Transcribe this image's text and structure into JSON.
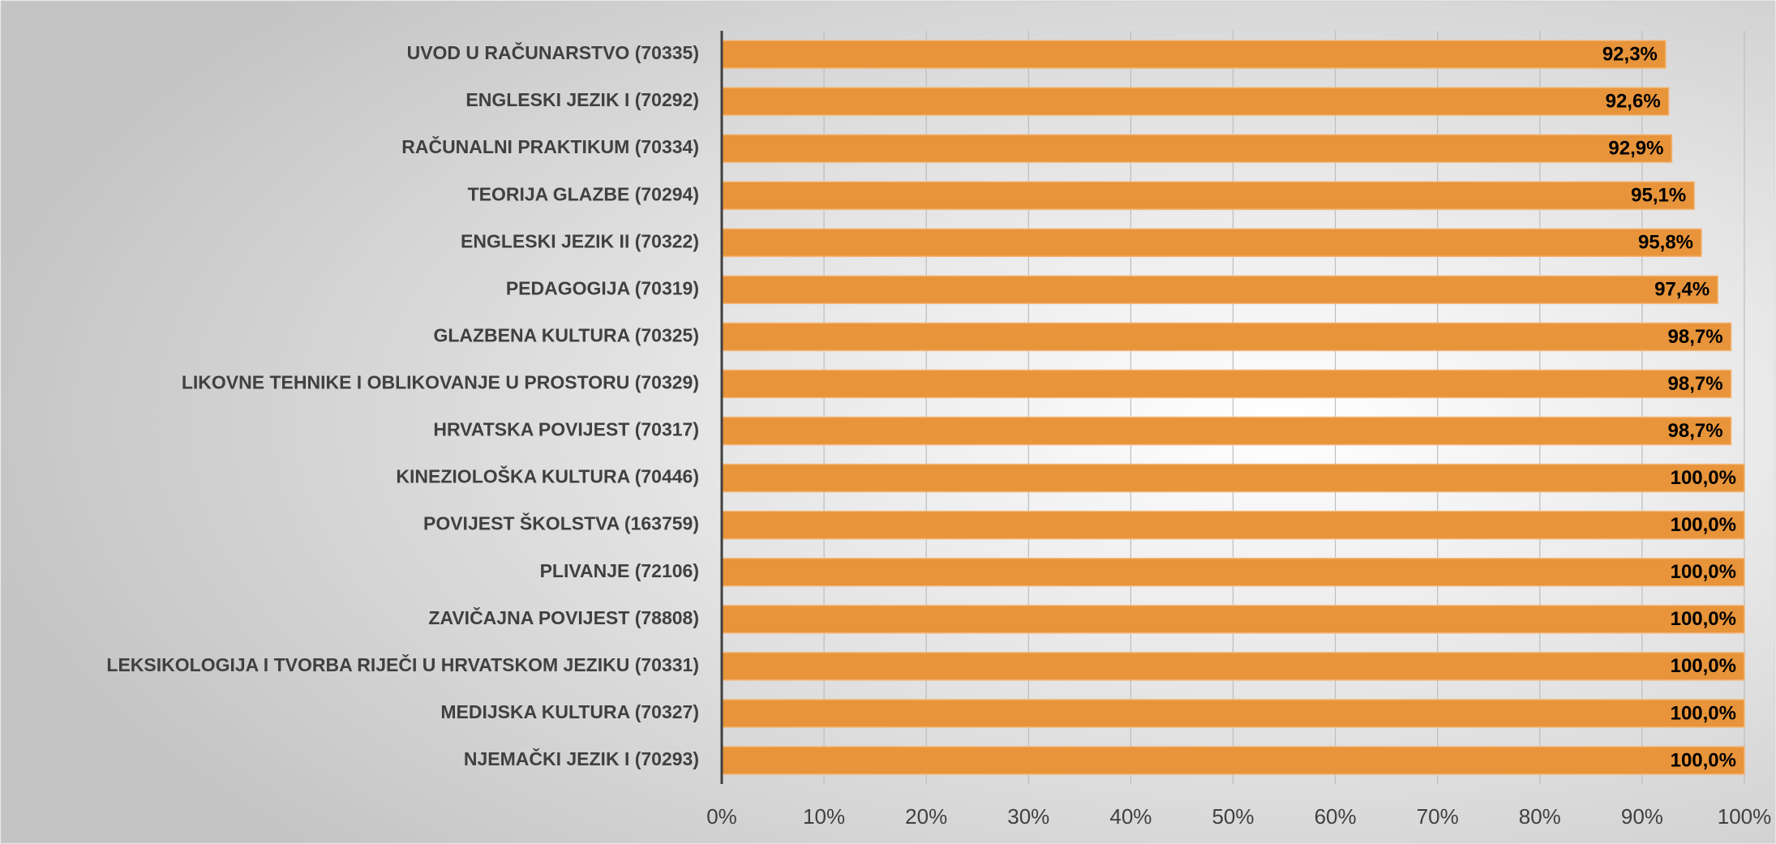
{
  "chart_data": {
    "type": "bar",
    "orientation": "horizontal",
    "categories": [
      "UVOD U RAČUNARSTVO (70335)",
      "ENGLESKI JEZIK I (70292)",
      "RAČUNALNI PRAKTIKUM (70334)",
      "TEORIJA GLAZBE (70294)",
      "ENGLESKI JEZIK II (70322)",
      "PEDAGOGIJA (70319)",
      "GLAZBENA KULTURA (70325)",
      "LIKOVNE TEHNIKE I OBLIKOVANJE U PROSTORU (70329)",
      "HRVATSKA POVIJEST (70317)",
      "KINEZIOLOŠKA KULTURA (70446)",
      "POVIJEST ŠKOLSTVA (163759)",
      "PLIVANJE (72106)",
      "ZAVIČAJNA POVIJEST (78808)",
      "LEKSIKOLOGIJA I TVORBA RIJEČI U HRVATSKOM JEZIKU (70331)",
      "MEDIJSKA KULTURA (70327)",
      "NJEMAČKI JEZIK I (70293)"
    ],
    "values": [
      92.3,
      92.6,
      92.9,
      95.1,
      95.8,
      97.4,
      98.7,
      98.7,
      98.7,
      100,
      100,
      100,
      100,
      100,
      100,
      100
    ],
    "value_labels": [
      "92,3%",
      "92,6%",
      "92,9%",
      "95,1%",
      "95,8%",
      "97,4%",
      "98,7%",
      "98,7%",
      "98,7%",
      "100,0%",
      "100,0%",
      "100,0%",
      "100,0%",
      "100,0%",
      "100,0%",
      "100,0%"
    ],
    "color": "#e8943a",
    "xlim": [
      0,
      100
    ],
    "xticks": [
      {
        "value": 0,
        "label": "0%"
      },
      {
        "value": 10,
        "label": "10%"
      },
      {
        "value": 20,
        "label": "20%"
      },
      {
        "value": 30,
        "label": "30%"
      },
      {
        "value": 40,
        "label": "40%"
      },
      {
        "value": 50,
        "label": "50%"
      },
      {
        "value": 60,
        "label": "60%"
      },
      {
        "value": 70,
        "label": "70%"
      },
      {
        "value": 80,
        "label": "80%"
      },
      {
        "value": 90,
        "label": "90%"
      },
      {
        "value": 100,
        "label": "100%"
      }
    ],
    "grid": true
  }
}
